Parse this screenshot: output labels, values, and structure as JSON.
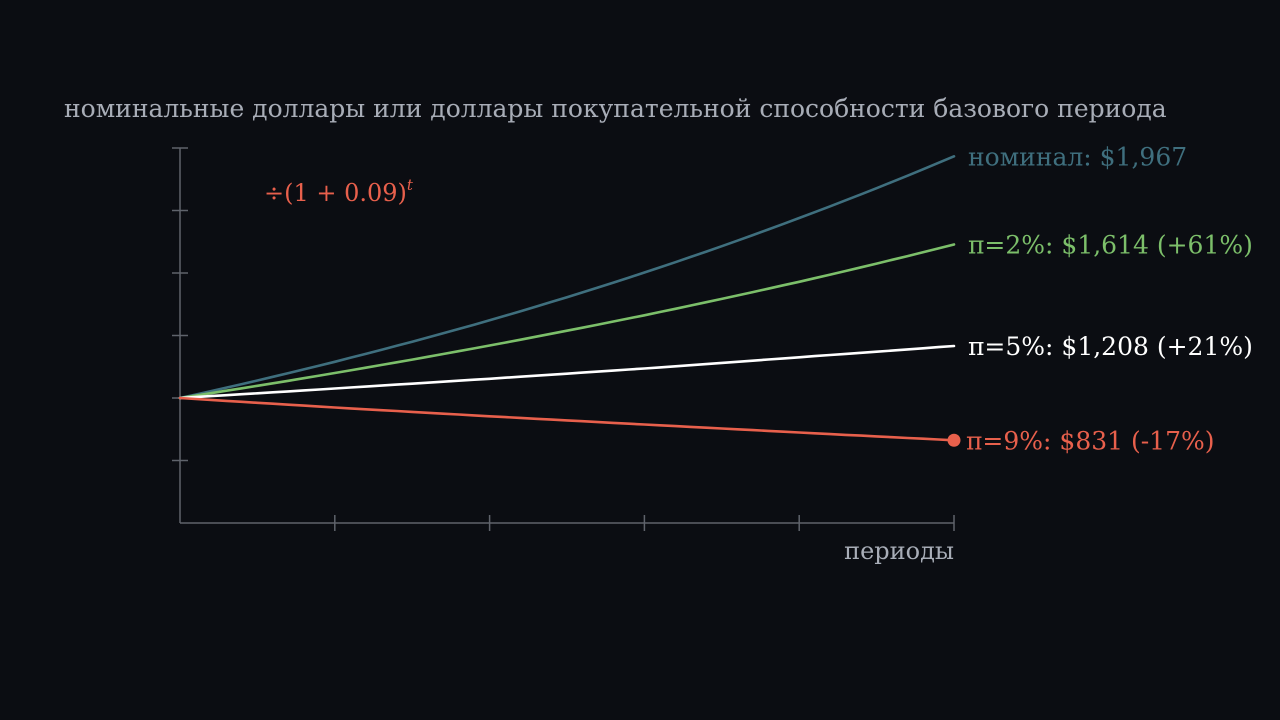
{
  "chart_data": {
    "type": "line",
    "title": "номинальные доллары или доллары покупательной способности базового периода",
    "xlabel": "периоды",
    "ylabel": "",
    "formula": "÷(1 + 0.09)",
    "formula_exponent": "t",
    "grid": false,
    "x": [
      0,
      1,
      2,
      3,
      4,
      5
    ],
    "xlim": [
      0,
      5
    ],
    "ylim": [
      500,
      2000
    ],
    "series": [
      {
        "name": "номинал",
        "label_value": "$1,967",
        "color": "#3f6f7e",
        "values": [
          1000,
          1145,
          1311,
          1502,
          1720,
          1967
        ]
      },
      {
        "name": "π=2%",
        "label_value": "$1,614 (+61%)",
        "color": "#7cbf6a",
        "values": [
          1000,
          1100,
          1210,
          1331,
          1465,
          1614
        ]
      },
      {
        "name": "π=5%",
        "label_value": "$1,208 (+21%)",
        "color": "#ffffff",
        "values": [
          1000,
          1038,
          1077,
          1118,
          1163,
          1208
        ]
      },
      {
        "name": "π=9%",
        "label_value": "$831 (-17%)",
        "color": "#e8604c",
        "end_marker": true,
        "values": [
          1000,
          962,
          927,
          894,
          862,
          831
        ]
      }
    ]
  }
}
